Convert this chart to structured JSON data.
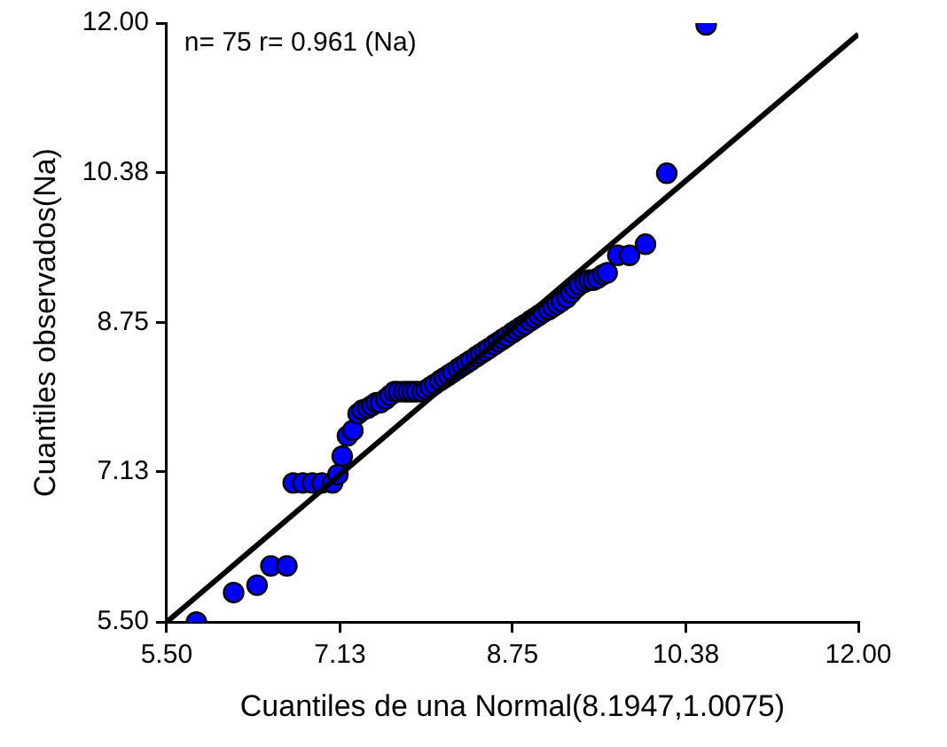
{
  "chart_data": {
    "type": "scatter",
    "xlabel": "Cuantiles de una Normal(8.1947,1.0075)",
    "ylabel": "Cuantiles observados(Na)",
    "annotations": [
      "n= 75 r= 0.961 (Na)"
    ],
    "xlim": [
      5.5,
      12
    ],
    "ylim": [
      5.5,
      12
    ],
    "xticks": [
      {
        "value": 5.5,
        "label": "5.50"
      },
      {
        "value": 7.13,
        "label": "7.13"
      },
      {
        "value": 8.75,
        "label": "8.75"
      },
      {
        "value": 10.38,
        "label": "10.38"
      },
      {
        "value": 12,
        "label": "12.00"
      }
    ],
    "yticks": [
      {
        "value": 5.5,
        "label": "5.50"
      },
      {
        "value": 7.13,
        "label": "7.13"
      },
      {
        "value": 8.75,
        "label": "8.75"
      },
      {
        "value": 10.38,
        "label": "10.38"
      },
      {
        "value": 12,
        "label": "12.00"
      }
    ],
    "grid": false,
    "legend": false,
    "marker": "circle",
    "series": [
      {
        "type": "scatter",
        "color": "#0000ff",
        "x": [
          5.78,
          6.13,
          6.35,
          6.48,
          6.63,
          6.69,
          6.78,
          6.87,
          6.96,
          7.06,
          7.11,
          7.15,
          7.2,
          7.25,
          7.3,
          7.34,
          7.39,
          7.43,
          7.47,
          7.51,
          7.56,
          7.6,
          7.64,
          7.68,
          7.73,
          7.77,
          7.81,
          7.85,
          7.9,
          7.94,
          7.98,
          8.02,
          8.07,
          8.11,
          8.15,
          8.19,
          8.24,
          8.28,
          8.32,
          8.36,
          8.41,
          8.45,
          8.49,
          8.53,
          8.58,
          8.62,
          8.66,
          8.7,
          8.75,
          8.79,
          8.83,
          8.87,
          8.92,
          8.96,
          9.0,
          9.04,
          9.09,
          9.13,
          9.17,
          9.21,
          9.26,
          9.3,
          9.34,
          9.38,
          9.43,
          9.47,
          9.51,
          9.55,
          9.6,
          9.64,
          9.74,
          9.85,
          10.0,
          10.2,
          10.57
        ],
        "values": [
          5.5,
          5.82,
          5.9,
          6.11,
          6.11,
          7.01,
          7.01,
          7.01,
          7.01,
          7.01,
          7.1,
          7.3,
          7.52,
          7.58,
          7.76,
          7.8,
          7.82,
          7.85,
          7.88,
          7.88,
          7.92,
          7.96,
          8.0,
          8.0,
          8.0,
          8.0,
          8.0,
          8.0,
          8.0,
          8.02,
          8.05,
          8.08,
          8.12,
          8.15,
          8.18,
          8.21,
          8.25,
          8.28,
          8.31,
          8.34,
          8.38,
          8.41,
          8.44,
          8.47,
          8.51,
          8.54,
          8.57,
          8.6,
          8.64,
          8.67,
          8.7,
          8.73,
          8.77,
          8.8,
          8.83,
          8.86,
          8.89,
          8.92,
          8.95,
          8.98,
          9.02,
          9.07,
          9.12,
          9.16,
          9.19,
          9.21,
          9.21,
          9.23,
          9.27,
          9.29,
          9.48,
          9.48,
          9.6,
          10.37,
          11.98
        ]
      },
      {
        "type": "line",
        "color": "#000000",
        "x": [
          5.5,
          12
        ],
        "values": [
          5.5,
          11.88
        ],
        "marker": "none",
        "line_style": "solid"
      }
    ]
  }
}
